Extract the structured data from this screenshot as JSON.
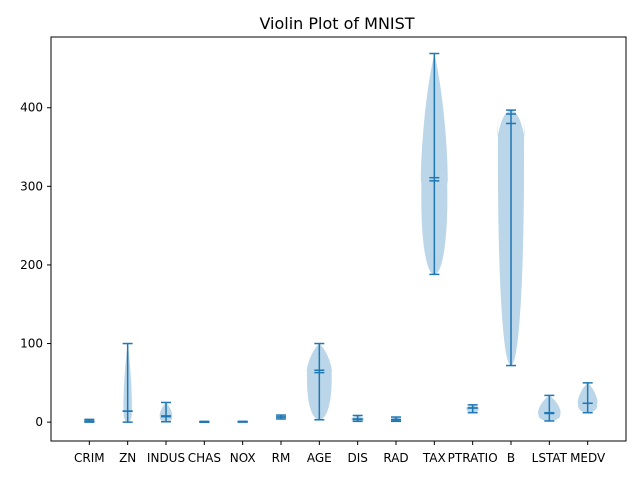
{
  "chart_data": {
    "type": "violin",
    "title": "Violin Plot of MNIST",
    "xlabel": "",
    "ylabel": "",
    "ylim": [
      -24,
      490
    ],
    "yticks": [
      0,
      100,
      200,
      300,
      400
    ],
    "grid": false,
    "color": "#1f77b4",
    "categories": [
      "CRIM",
      "ZN",
      "INDUS",
      "CHAS",
      "NOX",
      "RM",
      "AGE",
      "DIS",
      "RAD",
      "TAX",
      "PTRATIO",
      "B",
      "LSTAT",
      "MEDV"
    ],
    "series": [
      {
        "min": 0.0,
        "max": 3.5,
        "mean": 1.5,
        "median": 1.0,
        "bulge": 0.4
      },
      {
        "min": 0.0,
        "max": 100,
        "mean": 14,
        "median": 14,
        "bulge": 0.3
      },
      {
        "min": 0.5,
        "max": 25,
        "mean": 8,
        "median": 7,
        "bulge": 0.45
      },
      {
        "min": 0.0,
        "max": 1.0,
        "mean": 0.1,
        "median": 0.0,
        "bulge": 0.3
      },
      {
        "min": 0.0,
        "max": 1.0,
        "mean": 0.6,
        "median": 0.5,
        "bulge": 0.3
      },
      {
        "min": 4.0,
        "max": 9.0,
        "mean": 6.5,
        "median": 6.5,
        "bulge": 0.35
      },
      {
        "min": 3.0,
        "max": 100,
        "mean": 63,
        "median": 66,
        "bulge": 0.9
      },
      {
        "min": 1.0,
        "max": 8.5,
        "mean": 4.0,
        "median": 3.5,
        "bulge": 0.45
      },
      {
        "min": 1.0,
        "max": 6.5,
        "mean": 3.5,
        "median": 3.0,
        "bulge": 0.35
      },
      {
        "min": 188,
        "max": 469,
        "mean": 311,
        "median": 307,
        "bulge": 0.95
      },
      {
        "min": 12,
        "max": 22,
        "mean": 18,
        "median": 18,
        "bulge": 0.45
      },
      {
        "min": 72,
        "max": 397,
        "mean": 380,
        "median": 392,
        "bulge": 0.95
      },
      {
        "min": 1.5,
        "max": 34,
        "mean": 12,
        "median": 11,
        "bulge": 0.8
      },
      {
        "min": 12,
        "max": 50,
        "mean": 24,
        "median": 24,
        "bulge": 0.7
      }
    ]
  }
}
